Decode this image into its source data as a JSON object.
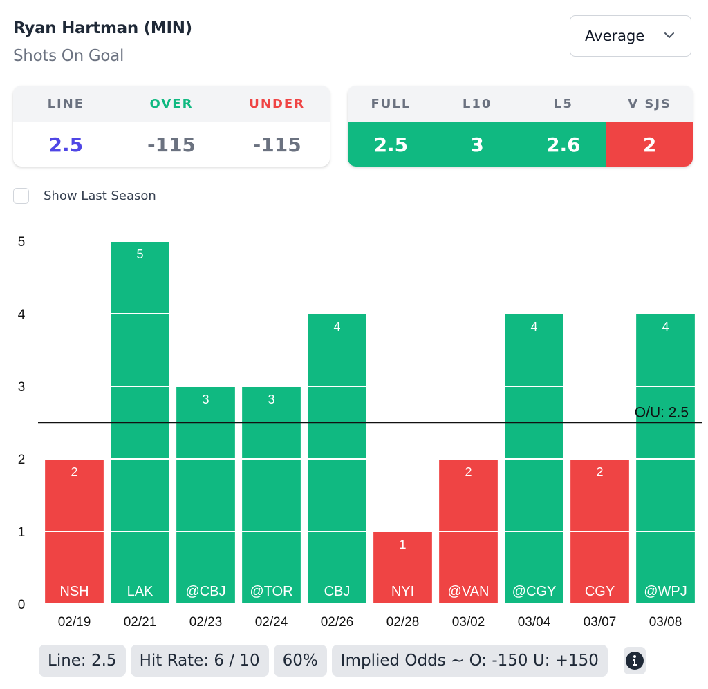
{
  "header": {
    "player": "Ryan Hartman (MIN)",
    "stat": "Shots On Goal"
  },
  "dropdown": {
    "selected": "Average",
    "icon": "chevron-down-icon"
  },
  "odds_card": {
    "headers": [
      "LINE",
      "OVER",
      "UNDER"
    ],
    "values": [
      "2.5",
      "-115",
      "-115"
    ],
    "header_colors": [
      "#6b7280",
      "#10b981",
      "#ef4444"
    ],
    "value_colors": [
      "#4f46e5",
      "#6b7280",
      "#6b7280"
    ]
  },
  "averages_card": {
    "headers": [
      "FULL",
      "L10",
      "L5",
      "V SJS"
    ],
    "values": [
      "2.5",
      "3",
      "2.6",
      "2"
    ],
    "value_bg": [
      "#10b981",
      "#10b981",
      "#10b981",
      "#ef4444"
    ]
  },
  "toggle": {
    "label": "Show Last Season",
    "checked": false
  },
  "colors": {
    "over": "#10b981",
    "under": "#ef4444",
    "line_value": "#4f46e5"
  },
  "chart_data": {
    "type": "bar",
    "title": "",
    "xlabel": "",
    "ylabel": "",
    "ylim": [
      0,
      5
    ],
    "yticks": [
      "0",
      "1",
      "2",
      "3",
      "4",
      "5"
    ],
    "categories": [
      "02/19",
      "02/21",
      "02/23",
      "02/24",
      "02/26",
      "02/28",
      "03/02",
      "03/04",
      "03/07",
      "03/08"
    ],
    "opponents": [
      "NSH",
      "LAK",
      "@CBJ",
      "@TOR",
      "CBJ",
      "NYI",
      "@VAN",
      "@CGY",
      "CGY",
      "@WPJ"
    ],
    "values": [
      2,
      5,
      3,
      3,
      4,
      1,
      2,
      4,
      2,
      4
    ],
    "line": {
      "value": 2.5,
      "label": "O/U: 2.5"
    },
    "grid": false,
    "color_rule": "green if value > line else red"
  },
  "summary": {
    "line": "Line: 2.5",
    "hit_rate": "Hit Rate: 6 / 10",
    "percent": "60%",
    "implied_odds": "Implied Odds ~ O: -150 U: +150",
    "info_icon": "info-icon"
  }
}
